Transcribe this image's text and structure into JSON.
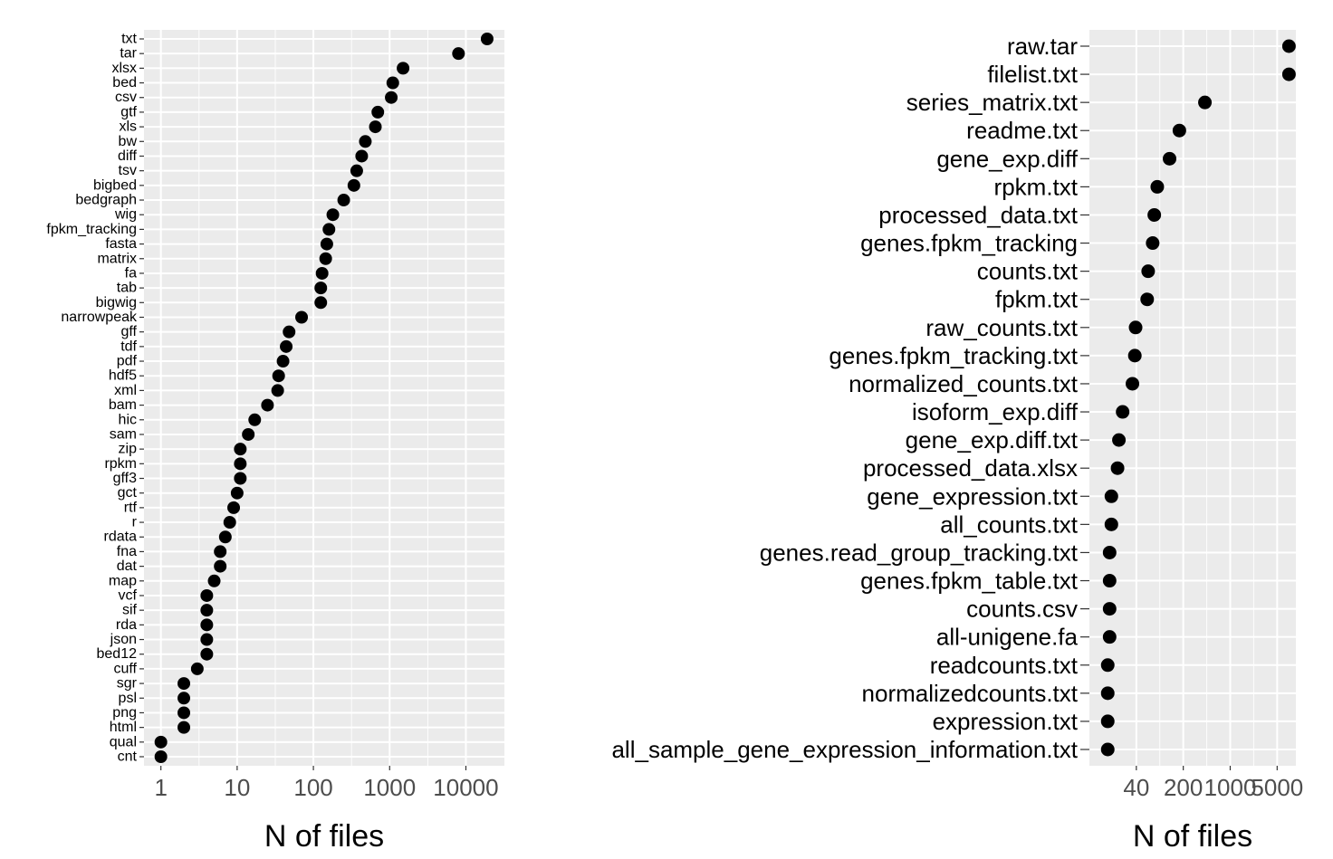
{
  "chart_data": [
    {
      "type": "scatter",
      "title": "",
      "xlabel": "N of files",
      "ylabel": "",
      "x_scale": "log10",
      "xlim": [
        0.6,
        32000
      ],
      "x_ticks": [
        {
          "value": 1,
          "label": "1"
        },
        {
          "value": 10,
          "label": "10"
        },
        {
          "value": 100,
          "label": "100"
        },
        {
          "value": 1000,
          "label": "1000"
        },
        {
          "value": 10000,
          "label": "10000"
        }
      ],
      "grid": true,
      "point_color": "#000000",
      "panel_color": "#ebebeb",
      "points": [
        {
          "label": "txt",
          "value": 19000
        },
        {
          "label": "tar",
          "value": 8000
        },
        {
          "label": "xlsx",
          "value": 1500
        },
        {
          "label": "bed",
          "value": 1100
        },
        {
          "label": "csv",
          "value": 1050
        },
        {
          "label": "gtf",
          "value": 700
        },
        {
          "label": "xls",
          "value": 650
        },
        {
          "label": "bw",
          "value": 480
        },
        {
          "label": "diff",
          "value": 430
        },
        {
          "label": "tsv",
          "value": 370
        },
        {
          "label": "bigbed",
          "value": 340
        },
        {
          "label": "bedgraph",
          "value": 250
        },
        {
          "label": "wig",
          "value": 180
        },
        {
          "label": "fpkm_tracking",
          "value": 160
        },
        {
          "label": "fasta",
          "value": 150
        },
        {
          "label": "matrix",
          "value": 145
        },
        {
          "label": "fa",
          "value": 130
        },
        {
          "label": "tab",
          "value": 125
        },
        {
          "label": "bigwig",
          "value": 125
        },
        {
          "label": "narrowpeak",
          "value": 70
        },
        {
          "label": "gff",
          "value": 48
        },
        {
          "label": "tdf",
          "value": 44
        },
        {
          "label": "pdf",
          "value": 40
        },
        {
          "label": "hdf5",
          "value": 35
        },
        {
          "label": "xml",
          "value": 34
        },
        {
          "label": "bam",
          "value": 25
        },
        {
          "label": "hic",
          "value": 17
        },
        {
          "label": "sam",
          "value": 14
        },
        {
          "label": "zip",
          "value": 11
        },
        {
          "label": "rpkm",
          "value": 11
        },
        {
          "label": "gff3",
          "value": 11
        },
        {
          "label": "gct",
          "value": 10
        },
        {
          "label": "rtf",
          "value": 9
        },
        {
          "label": "r",
          "value": 8
        },
        {
          "label": "rdata",
          "value": 7
        },
        {
          "label": "fna",
          "value": 6
        },
        {
          "label": "dat",
          "value": 6
        },
        {
          "label": "map",
          "value": 5
        },
        {
          "label": "vcf",
          "value": 4
        },
        {
          "label": "sif",
          "value": 4
        },
        {
          "label": "rda",
          "value": 4
        },
        {
          "label": "json",
          "value": 4
        },
        {
          "label": "bed12",
          "value": 4
        },
        {
          "label": "cuff",
          "value": 3
        },
        {
          "label": "sgr",
          "value": 2
        },
        {
          "label": "psl",
          "value": 2
        },
        {
          "label": "png",
          "value": 2
        },
        {
          "label": "html",
          "value": 2
        },
        {
          "label": "qual",
          "value": 1
        },
        {
          "label": "cnt",
          "value": 1
        }
      ]
    },
    {
      "type": "scatter",
      "title": "",
      "xlabel": "N of files",
      "ylabel": "",
      "x_scale": "log10",
      "xlim": [
        8,
        9500
      ],
      "x_ticks": [
        {
          "value": 40,
          "label": "40"
        },
        {
          "value": 200,
          "label": "200"
        },
        {
          "value": 1000,
          "label": "1000"
        },
        {
          "value": 5000,
          "label": "5000"
        }
      ],
      "grid": true,
      "point_color": "#000000",
      "panel_color": "#ebebeb",
      "points": [
        {
          "label": "raw.tar",
          "value": 7500
        },
        {
          "label": "filelist.txt",
          "value": 7500
        },
        {
          "label": "series_matrix.txt",
          "value": 420
        },
        {
          "label": "readme.txt",
          "value": 175
        },
        {
          "label": "gene_exp.diff",
          "value": 125
        },
        {
          "label": "rpkm.txt",
          "value": 82
        },
        {
          "label": "processed_data.txt",
          "value": 74
        },
        {
          "label": "genes.fpkm_tracking",
          "value": 70
        },
        {
          "label": "counts.txt",
          "value": 60
        },
        {
          "label": "fpkm.txt",
          "value": 58
        },
        {
          "label": "raw_counts.txt",
          "value": 39
        },
        {
          "label": "genes.fpkm_tracking.txt",
          "value": 38
        },
        {
          "label": "normalized_counts.txt",
          "value": 35
        },
        {
          "label": "isoform_exp.diff",
          "value": 25
        },
        {
          "label": "gene_exp.diff.txt",
          "value": 22
        },
        {
          "label": "processed_data.xlsx",
          "value": 21
        },
        {
          "label": "gene_expression.txt",
          "value": 17
        },
        {
          "label": "all_counts.txt",
          "value": 17
        },
        {
          "label": "genes.read_group_tracking.txt",
          "value": 16
        },
        {
          "label": "genes.fpkm_table.txt",
          "value": 16
        },
        {
          "label": "counts.csv",
          "value": 16
        },
        {
          "label": "all-unigene.fa",
          "value": 16
        },
        {
          "label": "readcounts.txt",
          "value": 15
        },
        {
          "label": "normalizedcounts.txt",
          "value": 15
        },
        {
          "label": "expression.txt",
          "value": 15
        },
        {
          "label": "all_sample_gene_expression_information.txt",
          "value": 15
        }
      ]
    }
  ]
}
